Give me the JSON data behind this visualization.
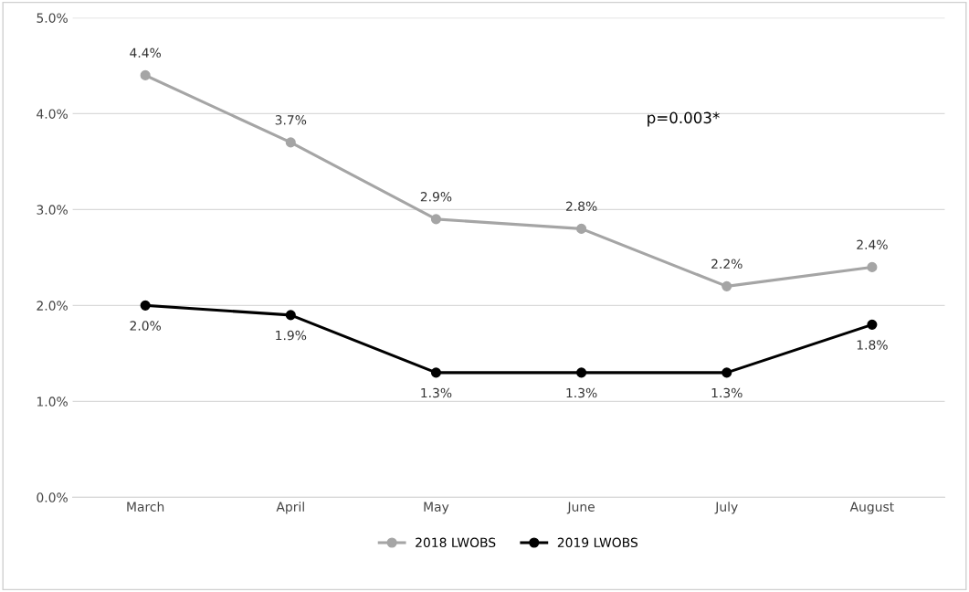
{
  "chart_data": {
    "type": "line",
    "categories": [
      "March",
      "April",
      "May",
      "June",
      "July",
      "August"
    ],
    "series": [
      {
        "name": "2018 LWOBS",
        "color": "#a5a5a5",
        "values": [
          4.4,
          3.7,
          2.9,
          2.8,
          2.2,
          2.4
        ],
        "value_labels": [
          "4.4%",
          "3.7%",
          "2.9%",
          "2.8%",
          "2.2%",
          "2.4%"
        ]
      },
      {
        "name": "2019 LWOBS",
        "color": "#000000",
        "values": [
          2.0,
          1.9,
          1.3,
          1.3,
          1.3,
          1.8
        ],
        "value_labels": [
          "2.0%",
          "1.9%",
          "1.3%",
          "1.3%",
          "1.3%",
          "1.8%"
        ]
      }
    ],
    "ylim": [
      0,
      5
    ],
    "yticks": [
      {
        "value": 0,
        "label": "0.0%"
      },
      {
        "value": 1,
        "label": "1.0%"
      },
      {
        "value": 2,
        "label": "2.0%"
      },
      {
        "value": 3,
        "label": "3.0%"
      },
      {
        "value": 4,
        "label": "4.0%"
      },
      {
        "value": 5,
        "label": "5.0%"
      }
    ],
    "grid": "y",
    "legend": "bottom",
    "marker": "circle",
    "line_style": "solid",
    "annotations": [
      "p=0.003*"
    ]
  }
}
